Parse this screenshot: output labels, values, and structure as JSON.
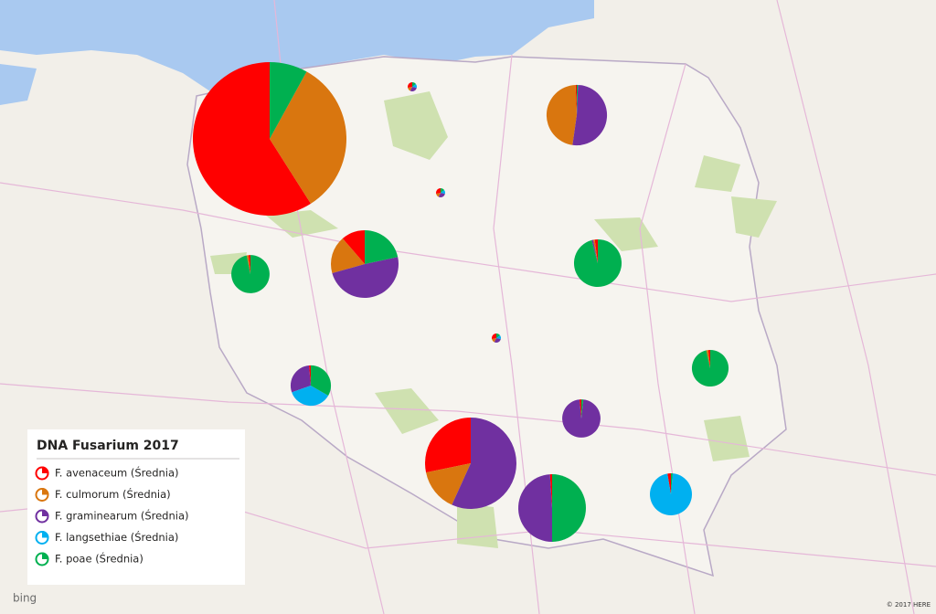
{
  "chart_data": {
    "type": "pie",
    "title": "DNA Fusarium 2017",
    "series": [
      {
        "name": "F. avenaceum (Średnia)",
        "color": "#ff0000",
        "values": [
          59,
          0.1,
          0.1,
          0.1,
          2.2,
          0.2,
          0.1,
          0.1,
          0.1,
          0.1,
          0.1,
          10,
          0.2,
          0.2
        ]
      },
      {
        "name": "F. culmorum (Średnia)",
        "color": "#d9760f",
        "values": [
          33,
          7.3,
          0.05,
          0.05,
          3.5,
          0.1,
          0.1,
          0.05,
          0,
          0.1,
          0,
          5.3,
          0,
          0
        ]
      },
      {
        "name": "F. graminearum (Średnia)",
        "color": "#7030a0",
        "values": [
          0,
          8,
          0.1,
          0.1,
          9.5,
          0.1,
          0,
          0.1,
          2,
          0,
          6,
          20.1,
          9.5,
          0
        ]
      },
      {
        "name": "F. langsethiae (Średnia)",
        "color": "#00b0f0",
        "values": [
          0,
          0,
          0.05,
          0.05,
          0,
          0,
          0,
          0.05,
          2.5,
          0,
          0,
          0,
          0,
          7.2
        ]
      },
      {
        "name": "F. poae (Średnia)",
        "color": "#00b050",
        "values": [
          8,
          0.1,
          0.05,
          0.05,
          4.2,
          9.2,
          6,
          0.05,
          2.3,
          5.5,
          0.1,
          0,
          9.7,
          0.1
        ]
      }
    ]
  },
  "attribution": {
    "logo": "bing",
    "copyright": "© 2017 HERE"
  }
}
